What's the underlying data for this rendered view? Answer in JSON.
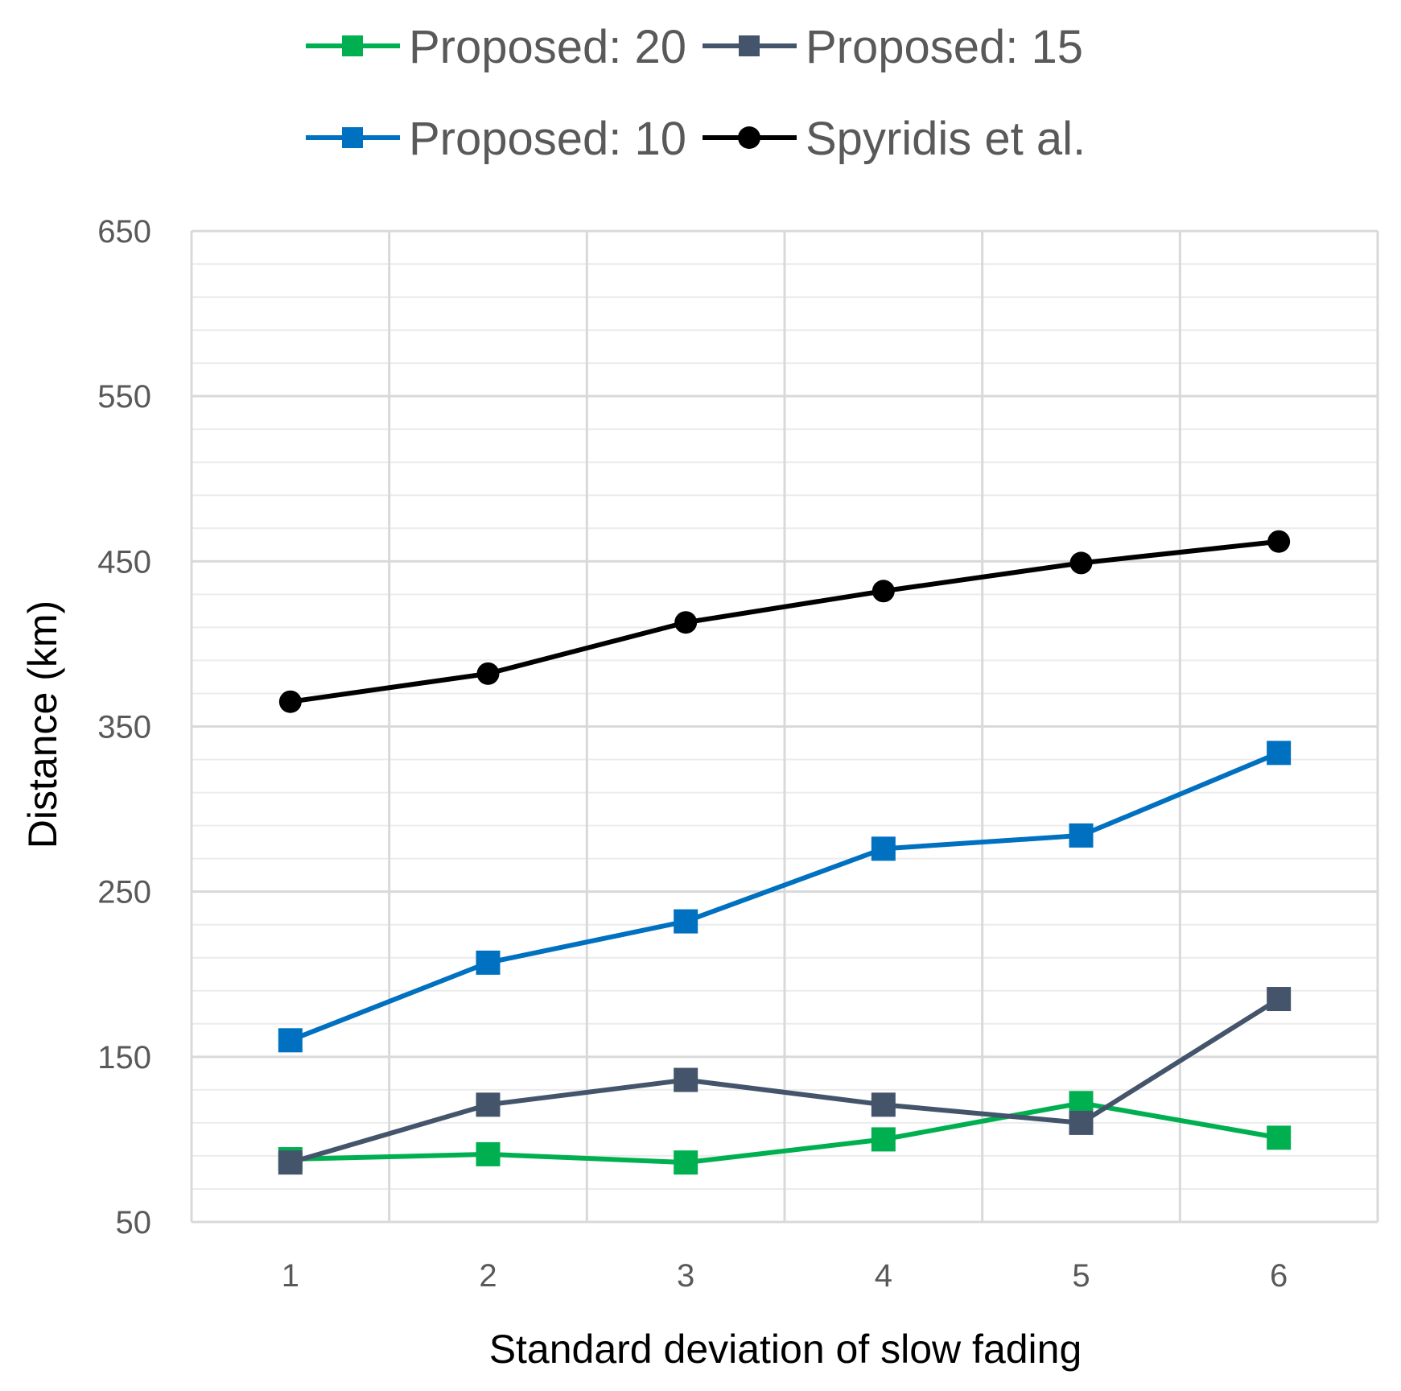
{
  "chart_data": {
    "type": "line",
    "title": "",
    "xlabel": "Standard deviation of slow fading",
    "ylabel": "Distance (km)",
    "categories": [
      1,
      2,
      3,
      4,
      5,
      6
    ],
    "ylim": [
      50,
      650
    ],
    "y_major_ticks": [
      50,
      150,
      250,
      350,
      450,
      550,
      650
    ],
    "y_minor_step": 20,
    "legend_position": "top",
    "series": [
      {
        "name": "Proposed: 20",
        "color": "#00b050",
        "marker": "square",
        "values": [
          88,
          91,
          86,
          100,
          122,
          101
        ]
      },
      {
        "name": "Proposed: 15",
        "color": "#44546a",
        "marker": "square",
        "values": [
          86,
          121,
          136,
          121,
          110,
          185
        ]
      },
      {
        "name": "Proposed: 10",
        "color": "#0070c0",
        "marker": "square",
        "values": [
          160,
          207,
          232,
          276,
          284,
          334
        ]
      },
      {
        "name": "Spyridis et al.",
        "color": "#000000",
        "marker": "circle",
        "values": [
          365,
          382,
          413,
          432,
          449,
          462
        ]
      }
    ]
  }
}
